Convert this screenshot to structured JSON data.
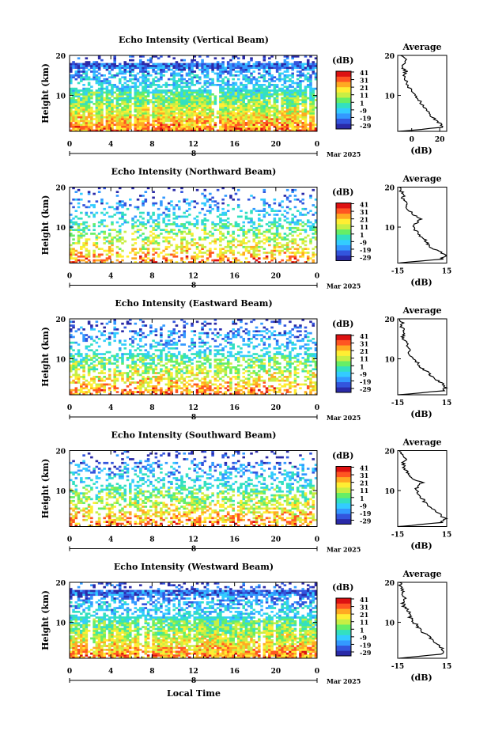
{
  "figure": {
    "xlabel": "Local Time",
    "date_label": "Mar 2025",
    "date_marker": "8"
  },
  "colorbar": {
    "unit": "(dB)",
    "ticks": [
      "41",
      "31",
      "21",
      "11",
      "1",
      "-9",
      "-19",
      "-29"
    ],
    "colors": [
      "#2a2aa8",
      "#3355dd",
      "#3399ff",
      "#33ccff",
      "#33e0c0",
      "#66ee66",
      "#c8ee44",
      "#ffee33",
      "#ffaa22",
      "#ff5522",
      "#dd1111"
    ]
  },
  "chart_data": [
    {
      "type": "heatmap",
      "title": "Echo Intensity (Vertical Beam)",
      "ylabel": "Height (km)",
      "xlim": [
        0,
        24
      ],
      "ylim": [
        1,
        20
      ],
      "xticks": [
        "0",
        "4",
        "8",
        "12",
        "16",
        "20",
        "0"
      ],
      "yticks": [
        "20",
        "10"
      ],
      "profile": {
        "title": "Average",
        "xlabel": "(dB)",
        "xlim": [
          -10,
          25
        ],
        "xticks": [
          "0",
          "20"
        ],
        "yticks": [
          "20",
          "10"
        ],
        "heights": [
          1,
          2,
          3,
          4,
          5,
          6,
          7,
          8,
          9,
          10,
          11,
          12,
          13,
          14,
          15,
          16,
          17,
          18,
          19,
          20
        ],
        "values": [
          -8,
          22,
          20,
          17,
          13,
          11,
          9,
          7,
          5,
          3,
          1,
          -2,
          -3,
          -5,
          -6,
          -4,
          -7,
          -5,
          -3,
          -8
        ]
      }
    },
    {
      "type": "heatmap",
      "title": "Echo Intensity (Northward Beam)",
      "ylabel": "Height (km)",
      "xlim": [
        0,
        24
      ],
      "ylim": [
        1,
        20
      ],
      "xticks": [
        "0",
        "4",
        "8",
        "12",
        "16",
        "20",
        "0"
      ],
      "yticks": [
        "20",
        "10"
      ],
      "profile": {
        "title": "Average",
        "xlabel": "(dB)",
        "xlim": [
          -15,
          15
        ],
        "xticks": [
          "-15",
          "15"
        ],
        "yticks": [
          "20",
          "10"
        ],
        "heights": [
          1,
          2,
          3,
          4,
          5,
          6,
          7,
          8,
          9,
          10,
          11,
          12,
          13,
          14,
          15,
          16,
          17,
          18,
          19,
          20
        ],
        "values": [
          -14,
          12,
          14,
          10,
          5,
          3,
          1,
          -2,
          -4,
          -6,
          -4,
          -1,
          -5,
          -8,
          -10,
          -9,
          -12,
          -11,
          -13,
          -14
        ]
      }
    },
    {
      "type": "heatmap",
      "title": "Echo Intensity (Eastward Beam)",
      "ylabel": "Height (km)",
      "xlim": [
        0,
        24
      ],
      "ylim": [
        1,
        20
      ],
      "xticks": [
        "0",
        "4",
        "8",
        "12",
        "16",
        "20",
        "0"
      ],
      "yticks": [
        "20",
        "10"
      ],
      "profile": {
        "title": "Average",
        "xlabel": "(dB)",
        "xlim": [
          -15,
          15
        ],
        "xticks": [
          "-15",
          "15"
        ],
        "yticks": [
          "20",
          "10"
        ],
        "heights": [
          1,
          2,
          3,
          4,
          5,
          6,
          7,
          8,
          9,
          10,
          11,
          12,
          13,
          14,
          15,
          16,
          17,
          18,
          19,
          20
        ],
        "values": [
          -14,
          13,
          14,
          12,
          8,
          5,
          2,
          -1,
          -3,
          -5,
          -7,
          -8,
          -9,
          -10,
          -11,
          -12,
          -11,
          -13,
          -12,
          -14
        ]
      }
    },
    {
      "type": "heatmap",
      "title": "Echo Intensity (Southward Beam)",
      "ylabel": "Height (km)",
      "xlim": [
        0,
        24
      ],
      "ylim": [
        1,
        20
      ],
      "xticks": [
        "0",
        "4",
        "8",
        "12",
        "16",
        "20",
        "0"
      ],
      "yticks": [
        "20",
        "10"
      ],
      "profile": {
        "title": "Average",
        "xlabel": "(dB)",
        "xlim": [
          -15,
          15
        ],
        "xticks": [
          "-15",
          "15"
        ],
        "yticks": [
          "20",
          "10"
        ],
        "heights": [
          1,
          2,
          3,
          4,
          5,
          6,
          7,
          8,
          9,
          10,
          11,
          12,
          13,
          14,
          15,
          16,
          17,
          18,
          19,
          20
        ],
        "values": [
          -14,
          12,
          14,
          11,
          7,
          4,
          2,
          0,
          -2,
          -4,
          -3,
          0,
          -6,
          -9,
          -10,
          -11,
          -12,
          -10,
          -13,
          -14
        ]
      }
    },
    {
      "type": "heatmap",
      "title": "Echo Intensity (Westward Beam)",
      "ylabel": "Height (km)",
      "xlim": [
        0,
        24
      ],
      "ylim": [
        1,
        20
      ],
      "xticks": [
        "0",
        "4",
        "8",
        "12",
        "16",
        "20",
        "0"
      ],
      "yticks": [
        "20",
        "10"
      ],
      "profile": {
        "title": "Average",
        "xlabel": "(dB)",
        "xlim": [
          -15,
          15
        ],
        "xticks": [
          "-15",
          "15"
        ],
        "yticks": [
          "20",
          "10"
        ],
        "heights": [
          1,
          2,
          3,
          4,
          5,
          6,
          7,
          8,
          9,
          10,
          11,
          12,
          13,
          14,
          15,
          16,
          17,
          18,
          19,
          20
        ],
        "values": [
          -14,
          12,
          13,
          11,
          8,
          5,
          2,
          -1,
          -3,
          -5,
          -7,
          -8,
          -9,
          -11,
          -12,
          -10,
          -13,
          -12,
          -13,
          -14
        ]
      }
    }
  ]
}
